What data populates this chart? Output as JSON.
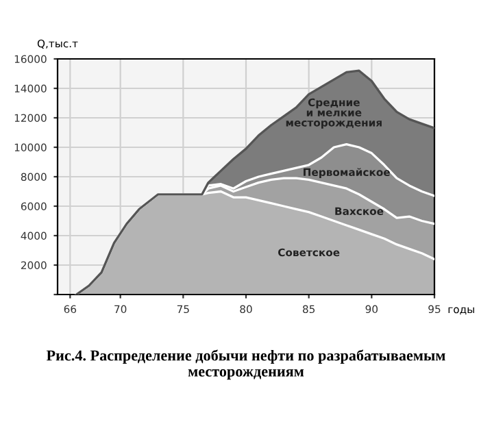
{
  "chart_data": {
    "type": "area",
    "stacked": true,
    "ylabel": "Q,тыс.т",
    "xlabel": "годы",
    "x": [
      66.5,
      67.5,
      68.5,
      69.5,
      70.5,
      71.5,
      73,
      76.5,
      77,
      78,
      79,
      80,
      81,
      82,
      83,
      84,
      85,
      86,
      87,
      88,
      89,
      90,
      91,
      92,
      93,
      94,
      95
    ],
    "series": [
      {
        "name": "Советское",
        "color": "#b4b4b4",
        "values": [
          0,
          600,
          1500,
          3500,
          4800,
          5800,
          6800,
          6800,
          6900,
          7000,
          6600,
          6600,
          6400,
          6200,
          6000,
          5800,
          5600,
          5300,
          5000,
          4700,
          4400,
          4100,
          3800,
          3400,
          3100,
          2800,
          2400
        ]
      },
      {
        "name": "Вахское",
        "color": "#a2a2a2",
        "values": [
          0,
          0,
          0,
          0,
          0,
          0,
          0,
          0,
          300,
          400,
          400,
          700,
          1200,
          1600,
          1900,
          2100,
          2200,
          2300,
          2400,
          2500,
          2400,
          2200,
          2000,
          1800,
          2200,
          2200,
          2400
        ]
      },
      {
        "name": "Первомайское",
        "color": "#8e8e8e",
        "values": [
          0,
          0,
          0,
          0,
          0,
          0,
          0,
          0,
          200,
          100,
          200,
          400,
          400,
          400,
          500,
          700,
          1000,
          1700,
          2600,
          3000,
          3200,
          3300,
          3000,
          2700,
          2100,
          2000,
          1900
        ]
      },
      {
        "name": "Средние и мелкие месторождения",
        "color": "#7c7c7c",
        "values": [
          0,
          0,
          0,
          0,
          0,
          0,
          0,
          0,
          200,
          900,
          2000,
          2200,
          2800,
          3300,
          3700,
          4100,
          4800,
          4800,
          4600,
          4900,
          5200,
          4900,
          4500,
          4500,
          4500,
          4600,
          4600
        ]
      }
    ],
    "xlim": [
      65,
      95
    ],
    "xticks": [
      66,
      70,
      75,
      80,
      85,
      90,
      95
    ],
    "ylim": [
      0,
      16000
    ],
    "yticks": [
      {
        "value": 0,
        "label": null
      },
      2000,
      4000,
      6000,
      8000,
      10000,
      12000,
      14000,
      16000
    ],
    "grid": true,
    "annotations": [
      "Рис.4. Распределение добычи нефти по разрабатываемым месторождениям"
    ]
  }
}
